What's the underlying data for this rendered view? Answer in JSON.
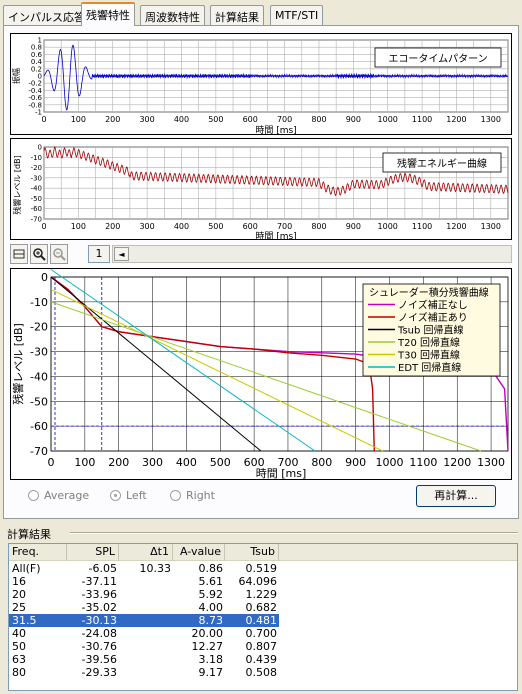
{
  "tabs": [
    "インパルス応答",
    "残響特性",
    "周波数特性",
    "計算結果",
    "MTF/STI"
  ],
  "active_tab": 1,
  "echo_chart": {
    "title": "エコータイムパターン",
    "ylabel": "振幅",
    "xlabel": "時間 [ms]",
    "yticks": [
      "1",
      "0.8",
      "0.6",
      "0.4",
      "0.2",
      "0",
      "-0.2",
      "-0.4",
      "-0.6",
      "-0.8",
      "-1"
    ],
    "xticks": [
      "0",
      "100",
      "200",
      "300",
      "400",
      "500",
      "600",
      "700",
      "800",
      "900",
      "1000",
      "1100",
      "1200",
      "1300"
    ]
  },
  "energy_chart": {
    "title": "残響エネルギー曲線",
    "ylabel": "残響レベル [dB]",
    "xlabel": "時間 [ms]",
    "yticks": [
      "0",
      "-10",
      "-20",
      "-30",
      "-40",
      "-50",
      "-60",
      "-70"
    ],
    "xticks": [
      "0",
      "100",
      "200",
      "300",
      "400",
      "500",
      "600",
      "700",
      "800",
      "900",
      "1000",
      "1100",
      "1200",
      "1300"
    ]
  },
  "toolbar": {
    "field_value": "1",
    "scroll_left": "◄"
  },
  "decay_chart": {
    "ylabel": "残響レベル [dB]",
    "xlabel": "時間 [ms]",
    "yticks": [
      "0",
      "-10",
      "-20",
      "-30",
      "-40",
      "-50",
      "-60",
      "-70"
    ],
    "xticks": [
      "0",
      "100",
      "200",
      "300",
      "400",
      "500",
      "600",
      "700",
      "800",
      "900",
      "1000",
      "1100",
      "1200",
      "1300"
    ],
    "legend": [
      {
        "label": "シュレーダー積分残響曲線",
        "color": ""
      },
      {
        "label": "ノイズ補正なし",
        "color": "#c000c0"
      },
      {
        "label": "ノイズ補正あり",
        "color": "#c00000"
      },
      {
        "label": "Tsub 回帰直線",
        "color": "#000000"
      },
      {
        "label": "T20 回帰直線",
        "color": "#9acd32"
      },
      {
        "label": "T30 回帰直線",
        "color": "#c8c800"
      },
      {
        "label": "EDT 回帰直線",
        "color": "#00b8c8"
      }
    ]
  },
  "chart_data": [
    {
      "type": "line",
      "title": "",
      "xlabel": "時間 [ms]",
      "ylabel": "残響レベル [dB]",
      "xlim": [
        0,
        1350
      ],
      "ylim": [
        -70,
        0
      ],
      "series": [
        {
          "name": "ノイズ補正なし",
          "x": [
            0,
            50,
            100,
            150,
            200,
            300,
            400,
            500,
            600,
            700,
            800,
            900,
            950,
            1000,
            1100,
            1200,
            1250,
            1300,
            1340,
            1350
          ],
          "values": [
            0,
            -5,
            -12,
            -20,
            -22,
            -24,
            -26,
            -28,
            -29,
            -30,
            -30.5,
            -31,
            -32,
            -33,
            -34,
            -34.5,
            -35,
            -37,
            -45,
            -70
          ]
        },
        {
          "name": "ノイズ補正あり",
          "x": [
            0,
            50,
            100,
            150,
            200,
            300,
            400,
            500,
            600,
            700,
            800,
            900,
            940,
            950,
            955
          ],
          "values": [
            0,
            -5,
            -12,
            -20,
            -22,
            -24,
            -26,
            -28,
            -29,
            -30.5,
            -31.5,
            -33,
            -35,
            -45,
            -70
          ]
        },
        {
          "name": "Tsub 回帰直線",
          "x": [
            0,
            620
          ],
          "values": [
            0,
            -70
          ]
        },
        {
          "name": "T20 回帰直線",
          "x": [
            0,
            1270
          ],
          "values": [
            -10,
            -70
          ]
        },
        {
          "name": "T30 回帰直線",
          "x": [
            0,
            980
          ],
          "values": [
            -5,
            -70
          ]
        },
        {
          "name": "EDT 回帰直線",
          "x": [
            0,
            780
          ],
          "values": [
            3,
            -70
          ]
        }
      ]
    }
  ],
  "radios": [
    {
      "label": "Average",
      "checked": false
    },
    {
      "label": "Left",
      "checked": true
    },
    {
      "label": "Right",
      "checked": false
    }
  ],
  "recalc_button": "再計算...",
  "results": {
    "section_title": "計算結果",
    "columns": [
      "Freq.",
      "SPL",
      "Δt1",
      "A-value",
      "Tsub"
    ],
    "rows": [
      [
        "All(F)",
        "-6.05",
        "10.33",
        "0.86",
        "0.519"
      ],
      [
        "16",
        "-37.11",
        "",
        "5.61",
        "64.096"
      ],
      [
        "20",
        "-33.96",
        "",
        "5.92",
        "1.229"
      ],
      [
        "25",
        "-35.02",
        "",
        "4.00",
        "0.682"
      ],
      [
        "31.5",
        "-30.13",
        "",
        "8.73",
        "0.481"
      ],
      [
        "40",
        "-24.08",
        "",
        "20.00",
        "0.700"
      ],
      [
        "50",
        "-30.76",
        "",
        "12.27",
        "0.807"
      ],
      [
        "63",
        "-39.56",
        "",
        "3.18",
        "0.439"
      ],
      [
        "80",
        "-29.33",
        "",
        "9.17",
        "0.508"
      ]
    ],
    "selected_row": 4
  }
}
